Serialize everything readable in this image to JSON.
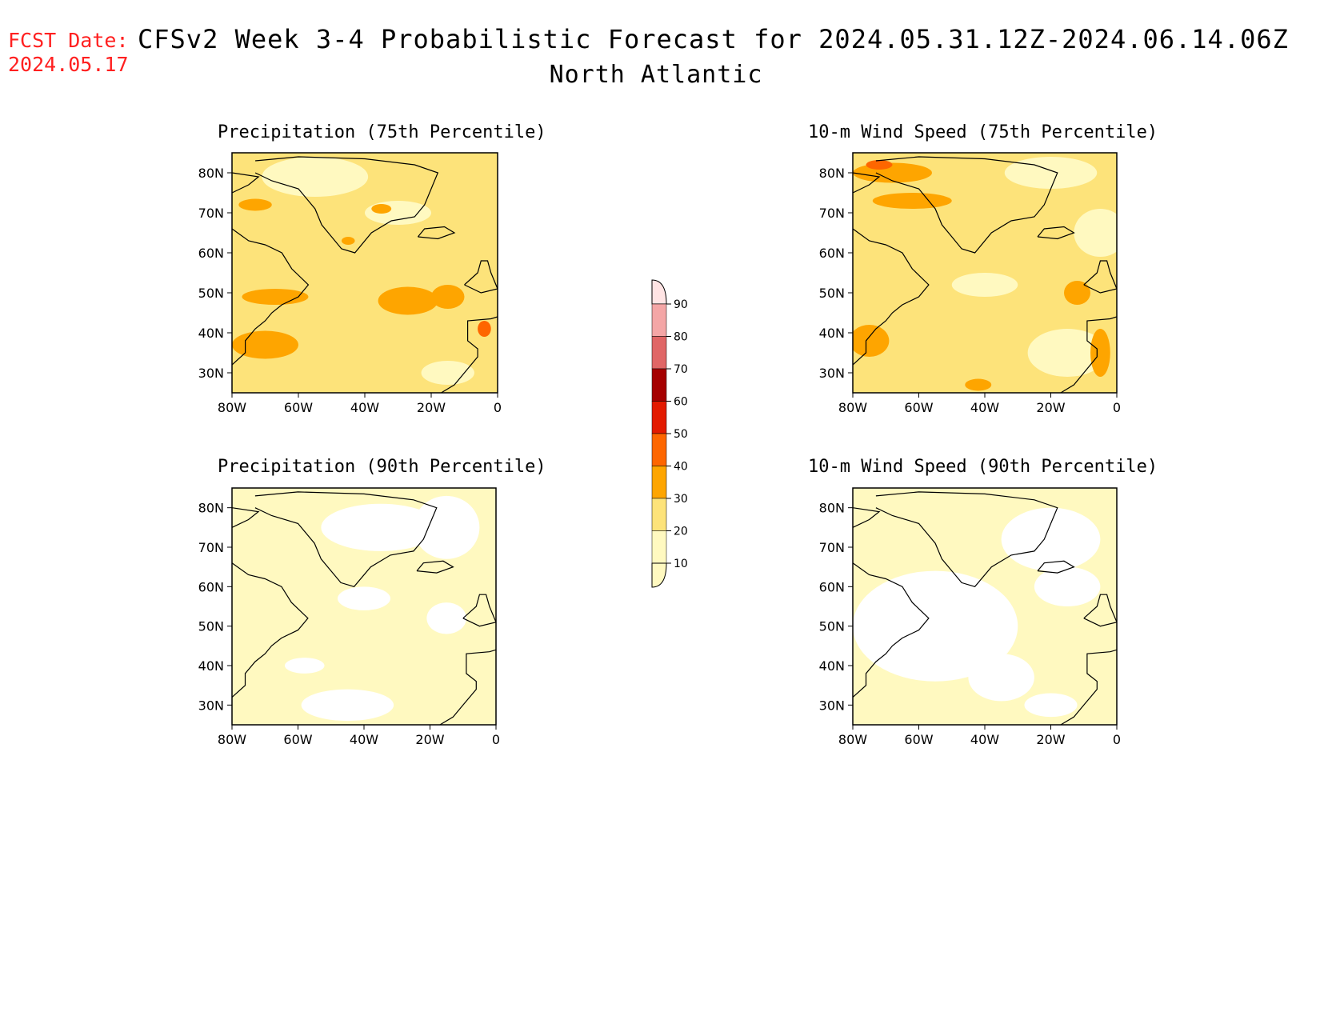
{
  "header": {
    "fcst_label": "FCST Date:",
    "fcst_date": "2024.05.17",
    "title": "CFSv2 Week 3-4 Probabilistic Forecast for 2024.05.31.12Z-2024.06.14.06Z",
    "subtitle": "North Atlantic"
  },
  "panels": [
    {
      "title": "Precipitation (75th Percentile)",
      "base_level": "20-30"
    },
    {
      "title": "10-m Wind Speed (75th Percentile)",
      "base_level": "20-30"
    },
    {
      "title": "Precipitation (90th Percentile)",
      "base_level": "10-20"
    },
    {
      "title": "10-m Wind Speed (90th Percentile)",
      "base_level": "10-20"
    }
  ],
  "axes": {
    "lon_ticks": [
      "80W",
      "60W",
      "40W",
      "20W",
      "0"
    ],
    "lat_ticks": [
      "80N",
      "70N",
      "60N",
      "50N",
      "40N",
      "30N"
    ],
    "lon_range": [
      -80,
      0
    ],
    "lat_range": [
      25,
      85
    ]
  },
  "colorbar": {
    "levels": [
      "10",
      "20",
      "30",
      "40",
      "50",
      "60",
      "70",
      "80",
      "90"
    ],
    "colors": [
      "#fff9c0",
      "#fde37a",
      "#fea500",
      "#fe6600",
      "#e31a00",
      "#a50000",
      "#e06666",
      "#f4a6a6",
      "#ffe4e4"
    ]
  }
}
